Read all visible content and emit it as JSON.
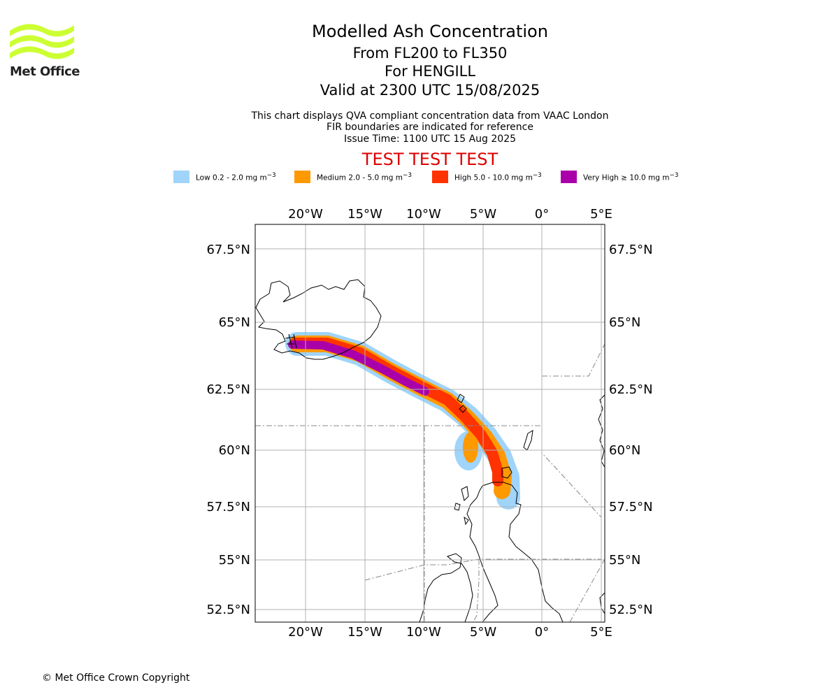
{
  "logo": {
    "name": "Met Office",
    "wave_color": "#ccff33"
  },
  "titles": {
    "main": "Modelled Ash Concentration",
    "levels": "From FL200 to FL350",
    "region": "For HENGILL",
    "valid": "Valid at 2300 UTC 15/08/2025"
  },
  "subtitles": {
    "line1": "This chart displays QVA compliant concentration data from VAAC London",
    "line2": "FIR boundaries are indicated for reference",
    "line3": "Issue Time: 1100 UTC 15 Aug 2025"
  },
  "test_banner": "TEST TEST TEST",
  "legend": [
    {
      "prefix": "Low",
      "range": "0.2 - 2.0 mg m",
      "color": "#a0d4fa"
    },
    {
      "prefix": "Medium",
      "range": "2.0 - 5.0 mg m",
      "color": "#ff9900"
    },
    {
      "prefix": "High",
      "range": "5.0 - 10.0 mg m",
      "color": "#ff3300"
    },
    {
      "prefix": "Very High",
      "range": "≥ 10.0 mg m",
      "color": "#aa00aa"
    }
  ],
  "legend_exponent": "−3",
  "map": {
    "lon_labels": [
      "20°W",
      "15°W",
      "10°W",
      "5°W",
      "0°",
      "5°E"
    ],
    "lat_labels": [
      "67.5°N",
      "65°N",
      "62.5°N",
      "60°N",
      "57.5°N",
      "55°N",
      "52.5°N"
    ]
  },
  "copyright": "© Met Office Crown Copyright"
}
